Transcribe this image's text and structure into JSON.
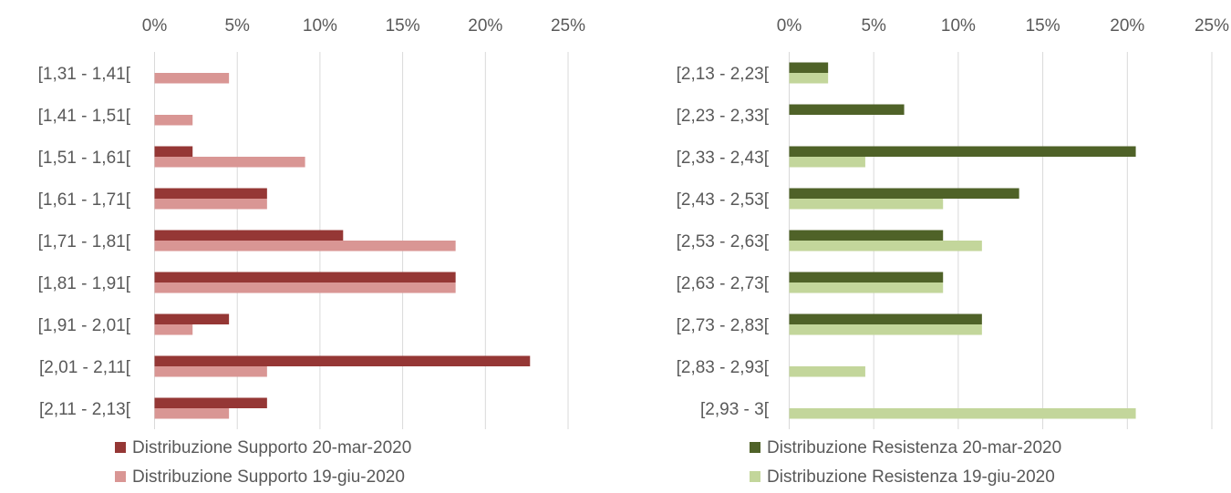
{
  "chart_data": [
    {
      "type": "bar",
      "orientation": "horizontal",
      "xlim": [
        0,
        25
      ],
      "x_ticks": [
        "0%",
        "5%",
        "10%",
        "15%",
        "20%",
        "25%"
      ],
      "x_tick_values": [
        0,
        5,
        10,
        15,
        20,
        25
      ],
      "axis_position": "top",
      "grid": true,
      "legend_position": "bottom",
      "categories": [
        "[1,31 - 1,41[",
        "[1,41 - 1,51[",
        "[1,51 - 1,61[",
        "[1,61 - 1,71[",
        "[1,71 - 1,81[",
        "[1,81 - 1,91[",
        "[1,91 - 2,01[",
        "[2,01 - 2,11[",
        "[2,11 - 2,13["
      ],
      "series": [
        {
          "name": "Distribuzione Supporto 20-mar-2020",
          "color": "#953735",
          "values": [
            0,
            0,
            2.3,
            6.8,
            11.4,
            18.2,
            4.5,
            22.7,
            6.8
          ]
        },
        {
          "name": "Distribuzione Supporto 19-giu-2020",
          "color": "#d99694",
          "values": [
            4.5,
            2.3,
            9.1,
            6.8,
            18.2,
            18.2,
            2.3,
            6.8,
            4.5
          ]
        }
      ]
    },
    {
      "type": "bar",
      "orientation": "horizontal",
      "xlim": [
        0,
        25
      ],
      "x_ticks": [
        "0%",
        "5%",
        "10%",
        "15%",
        "20%",
        "25%"
      ],
      "x_tick_values": [
        0,
        5,
        10,
        15,
        20,
        25
      ],
      "axis_position": "top",
      "grid": true,
      "legend_position": "bottom",
      "categories": [
        "[2,13 - 2,23[",
        "[2,23 - 2,33[",
        "[2,33 - 2,43[",
        "[2,43 - 2,53[",
        "[2,53 - 2,63[",
        "[2,63 - 2,73[",
        "[2,73 - 2,83[",
        "[2,83 - 2,93[",
        "[2,93 - 3["
      ],
      "series": [
        {
          "name": "Distribuzione Resistenza 20-mar-2020",
          "color": "#4f6228",
          "values": [
            2.3,
            6.8,
            20.5,
            13.6,
            9.1,
            9.1,
            11.4,
            0,
            0
          ]
        },
        {
          "name": "Distribuzione Resistenza 19-giu-2020",
          "color": "#c3d69b",
          "values": [
            2.3,
            0,
            4.5,
            9.1,
            11.4,
            9.1,
            11.4,
            4.5,
            20.5
          ]
        }
      ]
    }
  ]
}
